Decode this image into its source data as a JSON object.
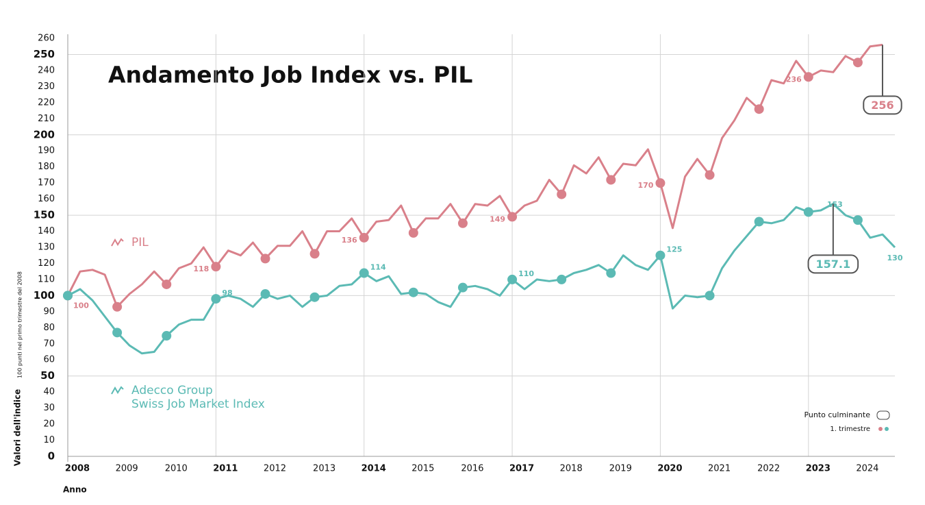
{
  "chart_data": {
    "type": "line",
    "title": "Andamento Job Index vs. PIL",
    "y_label": "Valori dell'indice",
    "y_sublabel": "100 punti nel primo trimestre del 2008",
    "x_label": "Anno",
    "categories": [
      "2008",
      null,
      null,
      null,
      "2009",
      null,
      null,
      null,
      "2010",
      null,
      null,
      null,
      "2011",
      null,
      null,
      null,
      "2012",
      null,
      null,
      null,
      "2013",
      null,
      null,
      null,
      "2014",
      null,
      null,
      null,
      "2015",
      null,
      null,
      null,
      "2016",
      null,
      null,
      null,
      "2017",
      null,
      null,
      null,
      "2018",
      null,
      null,
      null,
      "2019",
      null,
      null,
      null,
      "2020",
      null,
      null,
      null,
      "2021",
      null,
      null,
      null,
      "2022",
      null,
      null,
      null,
      "2023",
      null,
      null,
      null,
      "2024",
      null,
      null,
      null
    ],
    "major_xticks": [
      "2008",
      "2011",
      "2014",
      "2017",
      "2020",
      "2023"
    ],
    "ylim": [
      0,
      260
    ],
    "yticks": [
      0,
      10,
      20,
      30,
      40,
      50,
      60,
      70,
      80,
      90,
      100,
      110,
      120,
      130,
      140,
      150,
      160,
      170,
      180,
      190,
      200,
      210,
      220,
      230,
      240,
      250,
      260
    ],
    "major_yticks": [
      0,
      50,
      100,
      150,
      200,
      250
    ],
    "grid": true,
    "series": [
      {
        "name": "PIL",
        "color": "#d9808a",
        "values": [
          100,
          115,
          116,
          113,
          93,
          101,
          107,
          115,
          107,
          117,
          120,
          130,
          118,
          128,
          125,
          133,
          123,
          131,
          131,
          140,
          126,
          140,
          140,
          148,
          136,
          146,
          147,
          156,
          139,
          148,
          148,
          157,
          145,
          157,
          156,
          162,
          149,
          156,
          159,
          172,
          163,
          181,
          176,
          186,
          172,
          182,
          181,
          191,
          170,
          142,
          174,
          185,
          175,
          198,
          209,
          223,
          216,
          234,
          232,
          246,
          236,
          240,
          239,
          249,
          245,
          255,
          256,
          null
        ],
        "value_labels": [
          "100",
          null,
          null,
          null,
          null,
          null,
          null,
          null,
          null,
          null,
          null,
          null,
          "118",
          null,
          null,
          null,
          null,
          null,
          null,
          null,
          null,
          null,
          null,
          null,
          "136",
          null,
          null,
          null,
          null,
          null,
          null,
          null,
          null,
          null,
          null,
          null,
          "149",
          null,
          null,
          null,
          null,
          null,
          null,
          null,
          null,
          null,
          null,
          null,
          "170",
          null,
          null,
          null,
          null,
          null,
          null,
          null,
          null,
          null,
          null,
          null,
          "236",
          null,
          null,
          null,
          null,
          null,
          "256",
          null
        ]
      },
      {
        "name": "Adecco Group\nSwiss Job Market Index",
        "color": "#5bbab4",
        "values": [
          100,
          104,
          97,
          87,
          77,
          69,
          64,
          65,
          75,
          82,
          85,
          85,
          98,
          100,
          98,
          93,
          101,
          98,
          100,
          93,
          99,
          100,
          106,
          107,
          114,
          109,
          112,
          101,
          102,
          101,
          96,
          93,
          105,
          106,
          104,
          100,
          110,
          104,
          110,
          109,
          110,
          114,
          116,
          119,
          114,
          125,
          119,
          116,
          125,
          92,
          100,
          99,
          100,
          117,
          128,
          137,
          146,
          145,
          147,
          155,
          152,
          153,
          157.1,
          150,
          147,
          136,
          138,
          130
        ],
        "value_labels": [
          null,
          null,
          null,
          null,
          null,
          null,
          null,
          null,
          null,
          null,
          null,
          null,
          "98",
          null,
          null,
          null,
          null,
          null,
          null,
          null,
          null,
          null,
          null,
          null,
          "114",
          null,
          null,
          null,
          null,
          null,
          null,
          null,
          null,
          null,
          null,
          null,
          "110",
          null,
          null,
          null,
          null,
          null,
          null,
          null,
          null,
          null,
          null,
          null,
          "125",
          null,
          null,
          null,
          null,
          null,
          null,
          null,
          null,
          null,
          null,
          null,
          null,
          "153",
          "157.1",
          null,
          null,
          null,
          null,
          "130"
        ]
      }
    ],
    "legend_notes": {
      "peak": "Punto culminante",
      "quarter": "1. trimestre"
    }
  }
}
